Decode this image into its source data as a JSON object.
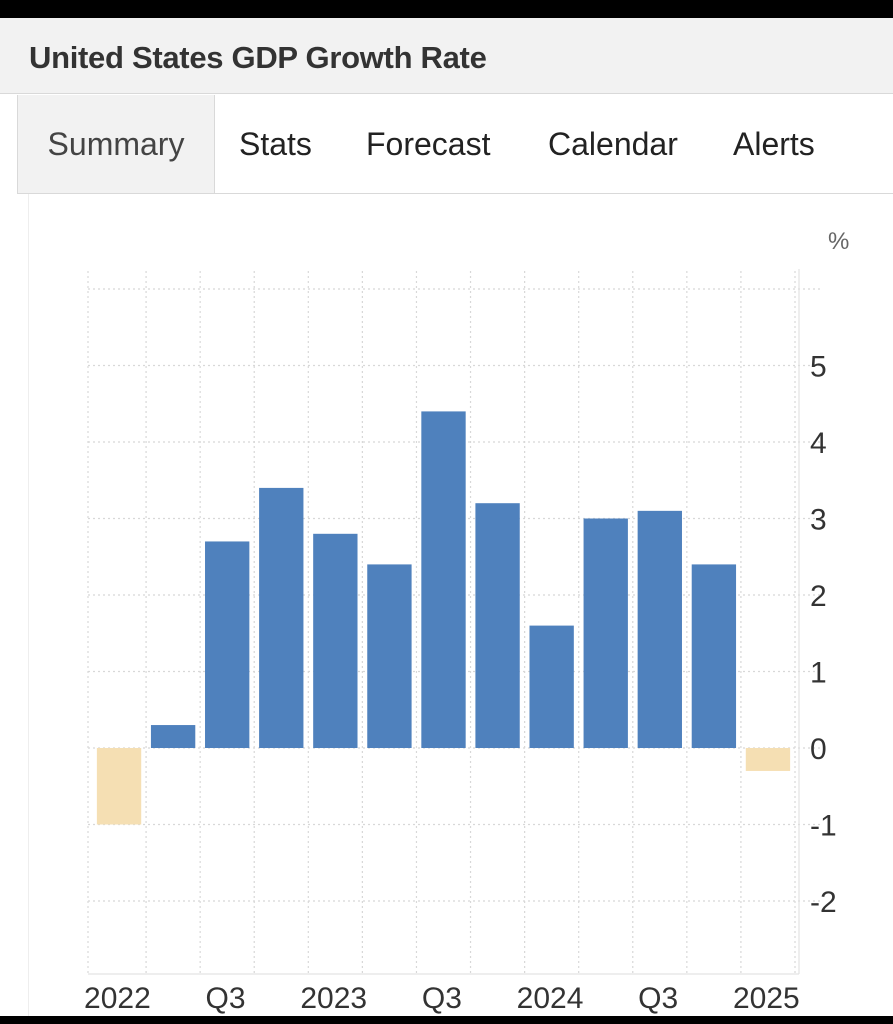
{
  "header": {
    "title": "United States GDP Growth Rate"
  },
  "tabs": [
    {
      "label": "Summary",
      "active": true
    },
    {
      "label": "Stats",
      "active": false
    },
    {
      "label": "Forecast",
      "active": false
    },
    {
      "label": "Calendar",
      "active": false
    },
    {
      "label": "Alerts",
      "active": false
    }
  ],
  "colors": {
    "positive": "#4f81bd",
    "negative": "#f5dfb3",
    "grid": "#d8d8d8"
  },
  "chart_data": {
    "type": "bar",
    "unit_label": "%",
    "ylim": [
      -3,
      6
    ],
    "yticks": [
      -2,
      -1,
      0,
      1,
      2,
      3,
      4,
      5
    ],
    "values": [
      -1.0,
      0.3,
      2.7,
      3.4,
      2.8,
      2.4,
      4.4,
      3.2,
      1.6,
      3.0,
      3.1,
      2.4,
      -0.3
    ],
    "xtick_labels": [
      {
        "index": 0.3,
        "label": "2022"
      },
      {
        "index": 2.3,
        "label": "Q3"
      },
      {
        "index": 4.3,
        "label": "2023"
      },
      {
        "index": 6.3,
        "label": "Q3"
      },
      {
        "index": 8.3,
        "label": "2024"
      },
      {
        "index": 10.3,
        "label": "Q3"
      },
      {
        "index": 12.3,
        "label": "2025"
      }
    ],
    "grid": true,
    "legend": "none"
  }
}
